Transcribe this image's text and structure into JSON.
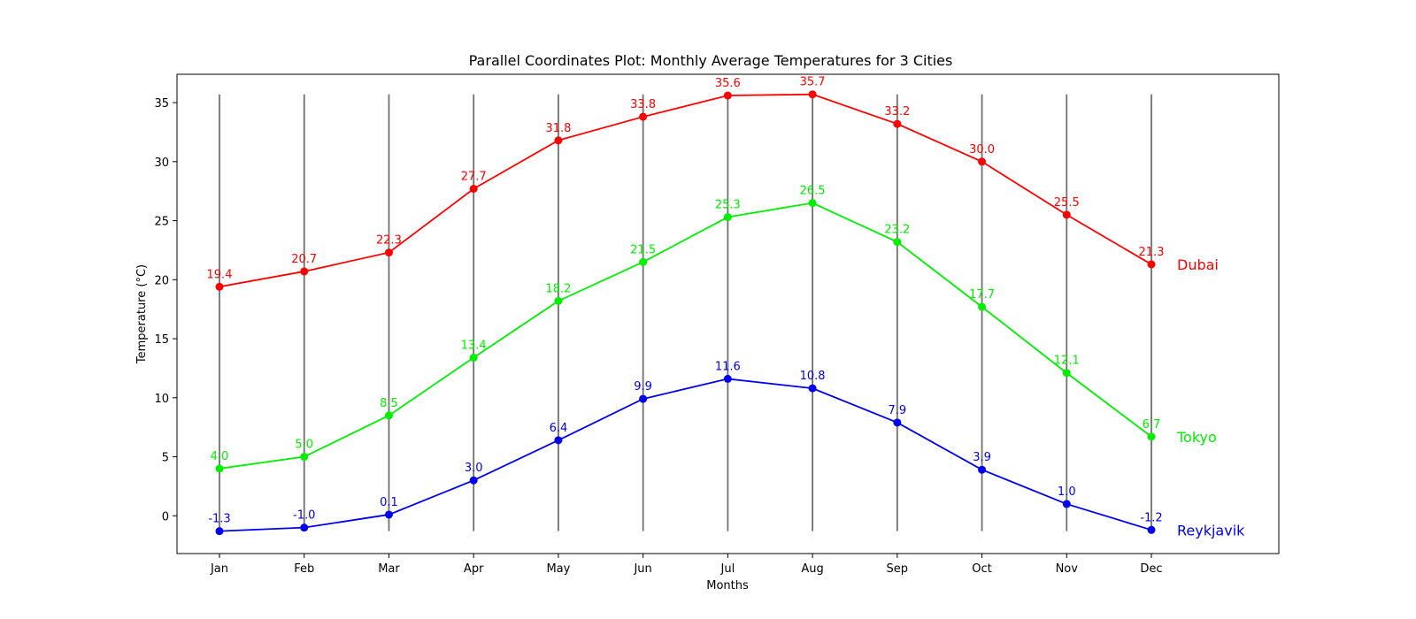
{
  "chart_data": {
    "type": "line",
    "title": "Parallel Coordinates Plot: Monthly Average Temperatures for 3 Cities",
    "xlabel": "Months",
    "ylabel": "Temperature (°C)",
    "categories": [
      "Jan",
      "Feb",
      "Mar",
      "Apr",
      "May",
      "Jun",
      "Jul",
      "Aug",
      "Sep",
      "Oct",
      "Nov",
      "Dec"
    ],
    "ylim": [
      -3.2,
      37.4
    ],
    "yticks": [
      0,
      5,
      10,
      15,
      20,
      25,
      30,
      35
    ],
    "grid": false,
    "legend": "right-of-line-ends",
    "series": [
      {
        "name": "Dubai",
        "color": "#ff0000",
        "values": [
          19.4,
          20.7,
          22.3,
          27.7,
          31.8,
          33.8,
          35.6,
          35.7,
          33.2,
          30.0,
          25.5,
          21.3
        ],
        "labels": [
          "19.4",
          "20.7",
          "22.3",
          "27.7",
          "31.8",
          "33.8",
          "35.6",
          "35.7",
          "33.2",
          "30.0",
          "25.5",
          "21.3"
        ]
      },
      {
        "name": "Tokyo",
        "color": "#00ee00",
        "values": [
          4.0,
          5.0,
          8.5,
          13.4,
          18.2,
          21.5,
          25.3,
          26.5,
          23.2,
          17.7,
          12.1,
          6.7
        ],
        "labels": [
          "4.0",
          "5.0",
          "8.5",
          "13.4",
          "18.2",
          "21.5",
          "25.3",
          "26.5",
          "23.2",
          "17.7",
          "12.1",
          "6.7"
        ]
      },
      {
        "name": "Reykjavik",
        "color": "#0000ee",
        "values": [
          -1.3,
          -1.0,
          0.1,
          3.0,
          6.4,
          9.9,
          11.6,
          10.8,
          7.9,
          3.9,
          1.0,
          -1.2
        ],
        "labels": [
          "-1.3",
          "-1.0",
          "0.1",
          "3.0",
          "6.4",
          "9.9",
          "11.6",
          "10.8",
          "7.9",
          "3.9",
          "1.0",
          "-1.2"
        ]
      }
    ],
    "axis_line_color": "#707070"
  }
}
